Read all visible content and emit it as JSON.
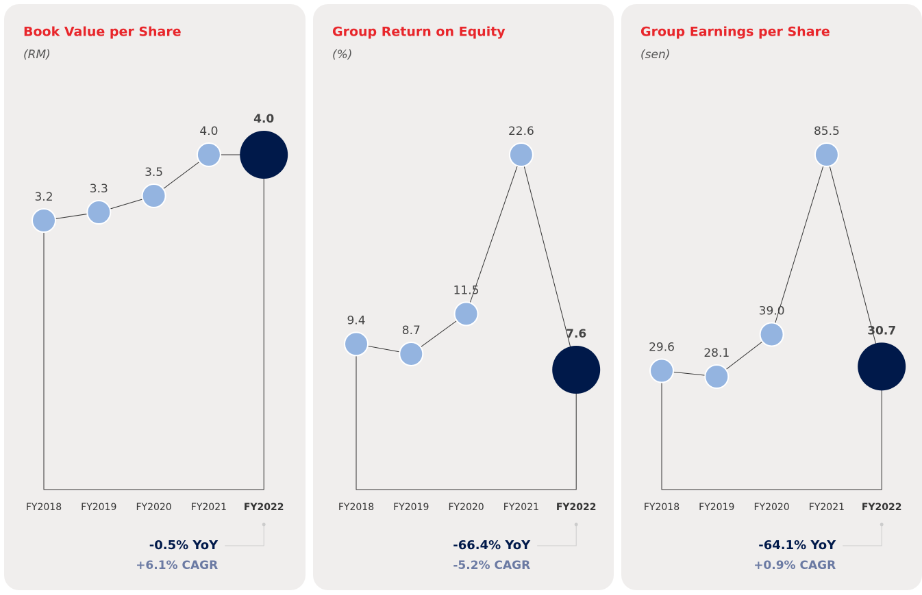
{
  "chart_data": [
    {
      "type": "line",
      "title": "Book Value per Share",
      "subtitle": "(RM)",
      "categories": [
        "FY2018",
        "FY2019",
        "FY2020",
        "FY2021",
        "FY2022"
      ],
      "values": [
        3.2,
        3.3,
        3.5,
        4.0,
        4.0
      ],
      "value_labels": [
        "3.2",
        "3.3",
        "3.5",
        "4.0",
        "4.0"
      ],
      "color": "#94b4e0",
      "highlight_color": "#00194a",
      "annotations": [
        "-0.5% YoY",
        "+6.1% CAGR"
      ]
    },
    {
      "type": "line",
      "title": "Group Return on Equity",
      "subtitle": "(%)",
      "categories": [
        "FY2018",
        "FY2019",
        "FY2020",
        "FY2021",
        "FY2022"
      ],
      "values": [
        9.4,
        8.7,
        11.5,
        22.6,
        7.6
      ],
      "value_labels": [
        "9.4",
        "8.7",
        "11.5",
        "22.6",
        "7.6"
      ],
      "color": "#94b4e0",
      "highlight_color": "#00194a",
      "annotations": [
        "-66.4% YoY",
        "-5.2% CAGR"
      ]
    },
    {
      "type": "line",
      "title": "Group Earnings per Share",
      "subtitle": "(sen)",
      "categories": [
        "FY2018",
        "FY2019",
        "FY2020",
        "FY2021",
        "FY2022"
      ],
      "values": [
        29.6,
        28.1,
        39.0,
        85.5,
        30.7
      ],
      "value_labels": [
        "29.6",
        "28.1",
        "39.0",
        "85.5",
        "30.7"
      ],
      "color": "#94b4e0",
      "highlight_color": "#00194a",
      "annotations": [
        "-64.1% YoY",
        "+0.9% CAGR"
      ]
    }
  ]
}
